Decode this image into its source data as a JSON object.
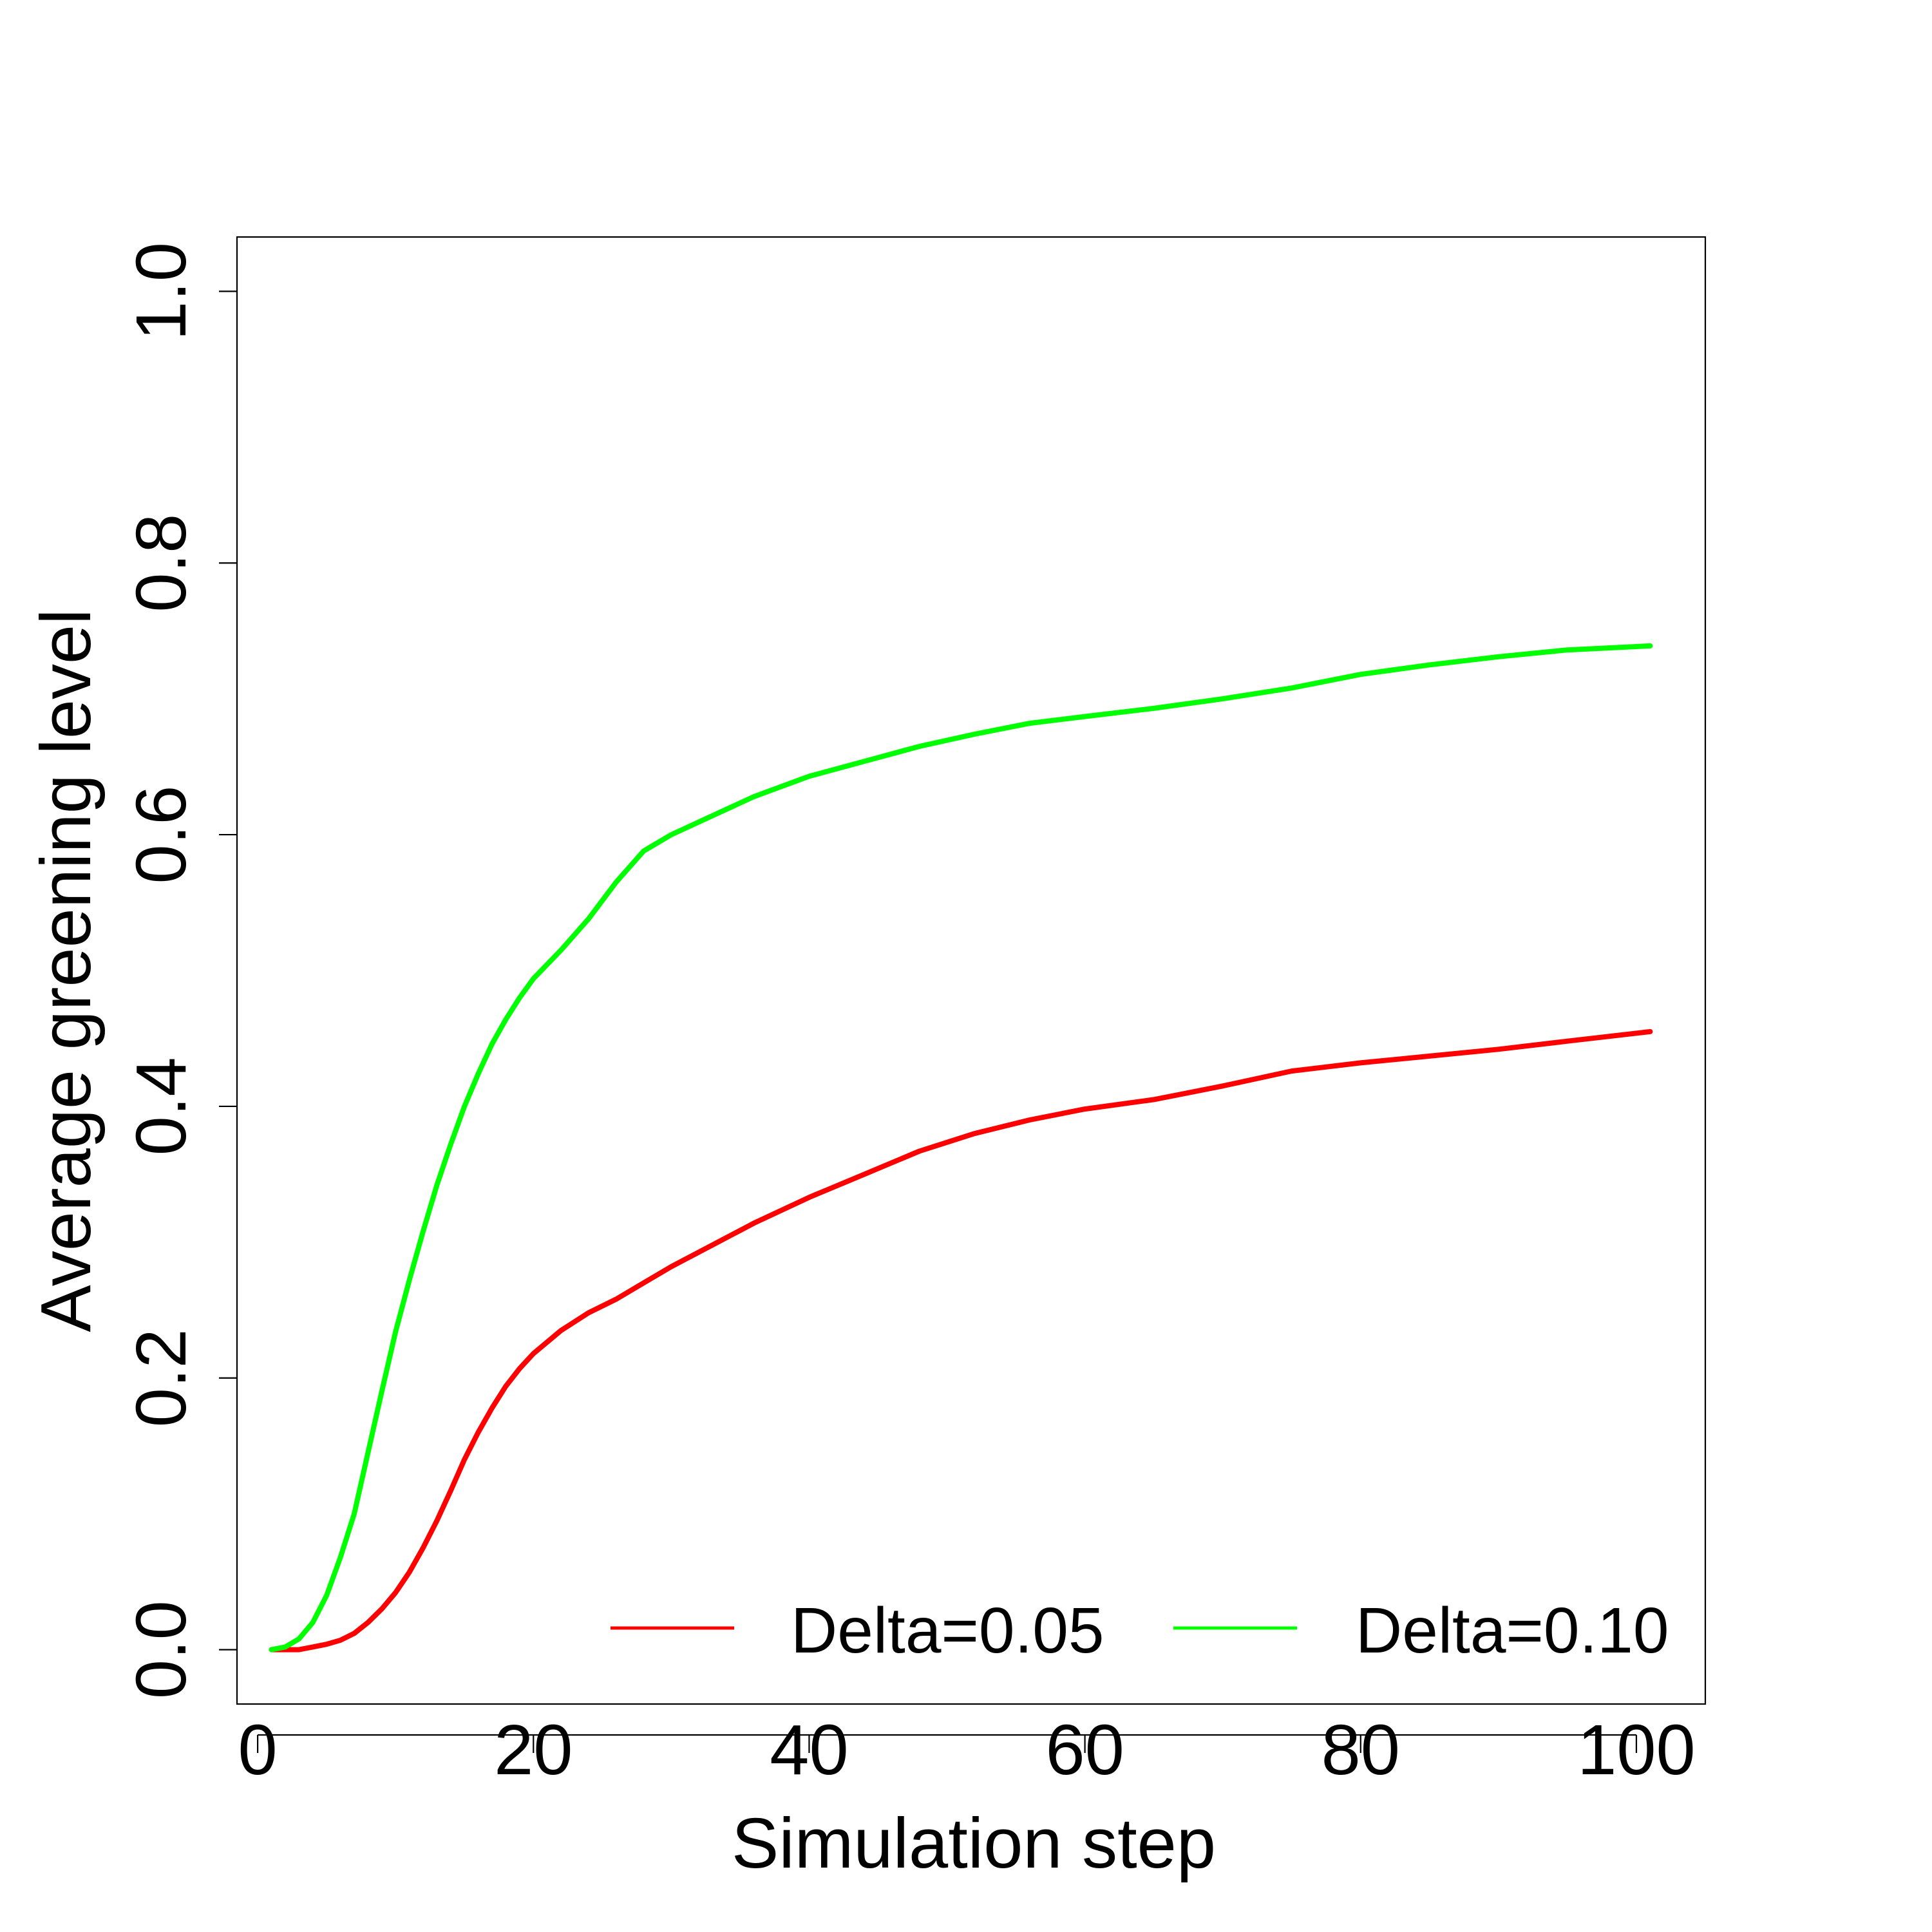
{
  "chart_data": {
    "type": "line",
    "title": "",
    "xlabel": "Simulation step",
    "ylabel": "Average greening level",
    "xlim": [
      -1.5,
      105
    ],
    "ylim": [
      -0.04,
      1.04
    ],
    "xticks": [
      0,
      20,
      40,
      60,
      80,
      100
    ],
    "yticks": [
      0.0,
      0.2,
      0.4,
      0.6,
      0.8,
      1.0
    ],
    "xtick_labels": [
      "0",
      "20",
      "40",
      "60",
      "80",
      "100"
    ],
    "ytick_labels": [
      "0.0",
      "0.2",
      "0.4",
      "0.6",
      "0.8",
      "1.0"
    ],
    "grid": false,
    "legend_position": "bottom-right",
    "series": [
      {
        "name": "Delta=0.05",
        "label": "Delta=0.05",
        "color": "#ff0000",
        "x": [
          1,
          2,
          3,
          4,
          5,
          6,
          7,
          8,
          9,
          10,
          11,
          12,
          13,
          14,
          15,
          16,
          17,
          18,
          19,
          20,
          22,
          24,
          26,
          28,
          30,
          33,
          36,
          40,
          44,
          48,
          52,
          56,
          60,
          65,
          70,
          75,
          80,
          85,
          90,
          95,
          101
        ],
        "y": [
          0.0,
          0.0,
          0.0,
          0.002,
          0.004,
          0.007,
          0.012,
          0.02,
          0.03,
          0.042,
          0.057,
          0.075,
          0.095,
          0.117,
          0.14,
          0.16,
          0.178,
          0.194,
          0.207,
          0.218,
          0.235,
          0.248,
          0.258,
          0.27,
          0.282,
          0.298,
          0.314,
          0.333,
          0.35,
          0.367,
          0.38,
          0.39,
          0.398,
          0.405,
          0.415,
          0.426,
          0.432,
          0.437,
          0.442,
          0.448,
          0.455
        ]
      },
      {
        "name": "Delta=0.10",
        "label": "Delta=0.10",
        "color": "#00ff00",
        "x": [
          1,
          2,
          3,
          4,
          5,
          6,
          7,
          8,
          9,
          10,
          11,
          12,
          13,
          14,
          15,
          16,
          17,
          18,
          19,
          20,
          22,
          24,
          26,
          28,
          30,
          33,
          36,
          40,
          44,
          48,
          52,
          56,
          60,
          65,
          70,
          75,
          80,
          85,
          90,
          95,
          101
        ],
        "y": [
          0.0,
          0.002,
          0.008,
          0.02,
          0.04,
          0.068,
          0.1,
          0.145,
          0.19,
          0.234,
          0.272,
          0.308,
          0.342,
          0.372,
          0.4,
          0.424,
          0.446,
          0.464,
          0.48,
          0.494,
          0.515,
          0.538,
          0.565,
          0.588,
          0.6,
          0.614,
          0.628,
          0.643,
          0.654,
          0.665,
          0.674,
          0.682,
          0.687,
          0.693,
          0.7,
          0.708,
          0.718,
          0.725,
          0.731,
          0.736,
          0.739
        ]
      }
    ]
  }
}
